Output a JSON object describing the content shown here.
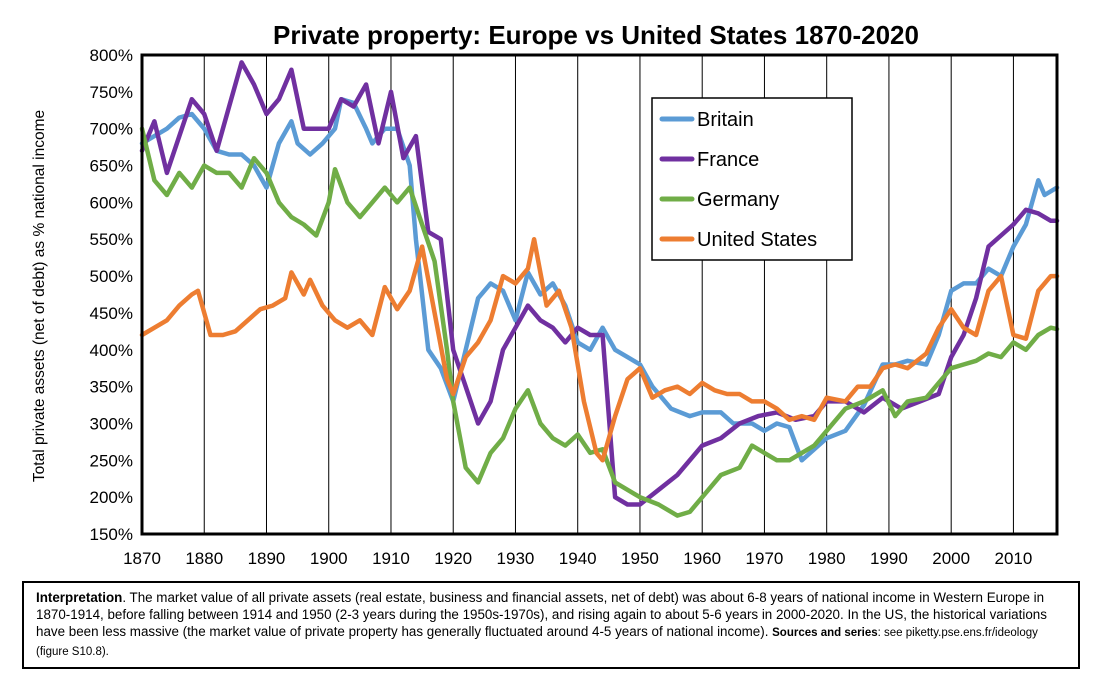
{
  "chart_data": {
    "type": "line",
    "title": "Private property: Europe vs United States 1870-2020",
    "ylabel": "Total private assets (net of debt) as % national income",
    "xlabel": "",
    "xlim": [
      1870,
      2017
    ],
    "ylim": [
      150,
      800
    ],
    "y_ticks": [
      150,
      200,
      250,
      300,
      350,
      400,
      450,
      500,
      550,
      600,
      650,
      700,
      750,
      800
    ],
    "y_tick_labels": [
      "150%",
      "200%",
      "250%",
      "300%",
      "350%",
      "400%",
      "450%",
      "500%",
      "550%",
      "600%",
      "650%",
      "700%",
      "750%",
      "800%"
    ],
    "x_ticks": [
      1870,
      1880,
      1890,
      1900,
      1910,
      1920,
      1930,
      1940,
      1950,
      1960,
      1970,
      1980,
      1990,
      2000,
      2010
    ],
    "x_tick_labels": [
      "1870",
      "1880",
      "1890",
      "1900",
      "1910",
      "1920",
      "1930",
      "1940",
      "1950",
      "1960",
      "1970",
      "1980",
      "1990",
      "2000",
      "2010"
    ],
    "grid": "vertical",
    "legend_position": "top-right",
    "series": [
      {
        "name": "Britain",
        "color": "#5b9bd5",
        "points": [
          [
            1870,
            680
          ],
          [
            1872,
            690
          ],
          [
            1874,
            700
          ],
          [
            1876,
            715
          ],
          [
            1878,
            720
          ],
          [
            1880,
            700
          ],
          [
            1882,
            670
          ],
          [
            1884,
            665
          ],
          [
            1886,
            665
          ],
          [
            1888,
            650
          ],
          [
            1890,
            620
          ],
          [
            1892,
            680
          ],
          [
            1894,
            710
          ],
          [
            1895,
            680
          ],
          [
            1897,
            665
          ],
          [
            1899,
            680
          ],
          [
            1901,
            700
          ],
          [
            1902,
            740
          ],
          [
            1904,
            735
          ],
          [
            1906,
            700
          ],
          [
            1907,
            680
          ],
          [
            1909,
            700
          ],
          [
            1911,
            700
          ],
          [
            1913,
            650
          ],
          [
            1914,
            550
          ],
          [
            1916,
            400
          ],
          [
            1918,
            375
          ],
          [
            1920,
            330
          ],
          [
            1922,
            400
          ],
          [
            1924,
            470
          ],
          [
            1926,
            490
          ],
          [
            1928,
            480
          ],
          [
            1930,
            440
          ],
          [
            1932,
            505
          ],
          [
            1934,
            475
          ],
          [
            1936,
            490
          ],
          [
            1938,
            460
          ],
          [
            1940,
            410
          ],
          [
            1942,
            400
          ],
          [
            1944,
            430
          ],
          [
            1946,
            400
          ],
          [
            1948,
            390
          ],
          [
            1950,
            380
          ],
          [
            1952,
            350
          ],
          [
            1955,
            320
          ],
          [
            1958,
            310
          ],
          [
            1960,
            315
          ],
          [
            1963,
            315
          ],
          [
            1965,
            300
          ],
          [
            1968,
            300
          ],
          [
            1970,
            290
          ],
          [
            1972,
            300
          ],
          [
            1974,
            295
          ],
          [
            1976,
            250
          ],
          [
            1978,
            265
          ],
          [
            1980,
            280
          ],
          [
            1983,
            290
          ],
          [
            1986,
            325
          ],
          [
            1989,
            380
          ],
          [
            1991,
            380
          ],
          [
            1993,
            385
          ],
          [
            1996,
            380
          ],
          [
            1998,
            420
          ],
          [
            2000,
            480
          ],
          [
            2002,
            490
          ],
          [
            2004,
            490
          ],
          [
            2006,
            510
          ],
          [
            2008,
            500
          ],
          [
            2010,
            540
          ],
          [
            2012,
            570
          ],
          [
            2014,
            630
          ],
          [
            2015,
            610
          ],
          [
            2017,
            620
          ]
        ]
      },
      {
        "name": "France",
        "color": "#7030a0",
        "points": [
          [
            1870,
            670
          ],
          [
            1872,
            710
          ],
          [
            1874,
            640
          ],
          [
            1876,
            690
          ],
          [
            1878,
            740
          ],
          [
            1880,
            720
          ],
          [
            1882,
            670
          ],
          [
            1884,
            730
          ],
          [
            1886,
            790
          ],
          [
            1888,
            760
          ],
          [
            1890,
            720
          ],
          [
            1892,
            740
          ],
          [
            1894,
            780
          ],
          [
            1896,
            700
          ],
          [
            1898,
            700
          ],
          [
            1900,
            700
          ],
          [
            1902,
            740
          ],
          [
            1904,
            730
          ],
          [
            1906,
            760
          ],
          [
            1908,
            680
          ],
          [
            1910,
            750
          ],
          [
            1912,
            660
          ],
          [
            1914,
            690
          ],
          [
            1916,
            560
          ],
          [
            1918,
            550
          ],
          [
            1920,
            400
          ],
          [
            1922,
            350
          ],
          [
            1924,
            300
          ],
          [
            1926,
            330
          ],
          [
            1928,
            400
          ],
          [
            1930,
            430
          ],
          [
            1932,
            460
          ],
          [
            1934,
            440
          ],
          [
            1936,
            430
          ],
          [
            1938,
            410
          ],
          [
            1940,
            430
          ],
          [
            1942,
            420
          ],
          [
            1944,
            420
          ],
          [
            1946,
            200
          ],
          [
            1948,
            190
          ],
          [
            1950,
            190
          ],
          [
            1953,
            210
          ],
          [
            1956,
            230
          ],
          [
            1960,
            270
          ],
          [
            1963,
            280
          ],
          [
            1966,
            300
          ],
          [
            1969,
            310
          ],
          [
            1972,
            315
          ],
          [
            1975,
            305
          ],
          [
            1978,
            310
          ],
          [
            1980,
            330
          ],
          [
            1983,
            330
          ],
          [
            1986,
            315
          ],
          [
            1989,
            335
          ],
          [
            1992,
            320
          ],
          [
            1995,
            330
          ],
          [
            1998,
            340
          ],
          [
            2000,
            390
          ],
          [
            2002,
            420
          ],
          [
            2004,
            470
          ],
          [
            2006,
            540
          ],
          [
            2008,
            555
          ],
          [
            2010,
            570
          ],
          [
            2012,
            590
          ],
          [
            2014,
            585
          ],
          [
            2016,
            575
          ],
          [
            2017,
            575
          ]
        ]
      },
      {
        "name": "Germany",
        "color": "#70ad47",
        "points": [
          [
            1870,
            700
          ],
          [
            1872,
            630
          ],
          [
            1874,
            610
          ],
          [
            1876,
            640
          ],
          [
            1878,
            620
          ],
          [
            1880,
            650
          ],
          [
            1882,
            640
          ],
          [
            1884,
            640
          ],
          [
            1886,
            620
          ],
          [
            1888,
            660
          ],
          [
            1890,
            640
          ],
          [
            1892,
            600
          ],
          [
            1894,
            580
          ],
          [
            1896,
            570
          ],
          [
            1898,
            555
          ],
          [
            1900,
            600
          ],
          [
            1901,
            645
          ],
          [
            1903,
            600
          ],
          [
            1905,
            580
          ],
          [
            1907,
            600
          ],
          [
            1909,
            620
          ],
          [
            1911,
            600
          ],
          [
            1913,
            620
          ],
          [
            1915,
            570
          ],
          [
            1917,
            520
          ],
          [
            1919,
            400
          ],
          [
            1920,
            330
          ],
          [
            1922,
            240
          ],
          [
            1924,
            220
          ],
          [
            1926,
            260
          ],
          [
            1928,
            280
          ],
          [
            1930,
            320
          ],
          [
            1932,
            345
          ],
          [
            1934,
            300
          ],
          [
            1936,
            280
          ],
          [
            1938,
            270
          ],
          [
            1940,
            285
          ],
          [
            1942,
            260
          ],
          [
            1944,
            265
          ],
          [
            1946,
            220
          ],
          [
            1948,
            210
          ],
          [
            1950,
            200
          ],
          [
            1953,
            190
          ],
          [
            1956,
            175
          ],
          [
            1958,
            180
          ],
          [
            1960,
            200
          ],
          [
            1963,
            230
          ],
          [
            1966,
            240
          ],
          [
            1968,
            270
          ],
          [
            1970,
            260
          ],
          [
            1972,
            250
          ],
          [
            1974,
            250
          ],
          [
            1976,
            260
          ],
          [
            1978,
            270
          ],
          [
            1980,
            290
          ],
          [
            1983,
            320
          ],
          [
            1986,
            330
          ],
          [
            1989,
            345
          ],
          [
            1991,
            310
          ],
          [
            1993,
            330
          ],
          [
            1996,
            335
          ],
          [
            1998,
            355
          ],
          [
            2000,
            375
          ],
          [
            2002,
            380
          ],
          [
            2004,
            385
          ],
          [
            2006,
            395
          ],
          [
            2008,
            390
          ],
          [
            2010,
            410
          ],
          [
            2012,
            400
          ],
          [
            2014,
            420
          ],
          [
            2016,
            430
          ],
          [
            2017,
            428
          ]
        ]
      },
      {
        "name": "United States",
        "color": "#ed7d31",
        "points": [
          [
            1870,
            420
          ],
          [
            1872,
            430
          ],
          [
            1874,
            440
          ],
          [
            1876,
            460
          ],
          [
            1878,
            475
          ],
          [
            1879,
            480
          ],
          [
            1881,
            420
          ],
          [
            1883,
            420
          ],
          [
            1885,
            425
          ],
          [
            1887,
            440
          ],
          [
            1889,
            455
          ],
          [
            1891,
            460
          ],
          [
            1893,
            470
          ],
          [
            1894,
            505
          ],
          [
            1896,
            475
          ],
          [
            1897,
            495
          ],
          [
            1899,
            460
          ],
          [
            1901,
            440
          ],
          [
            1903,
            430
          ],
          [
            1905,
            440
          ],
          [
            1907,
            420
          ],
          [
            1909,
            485
          ],
          [
            1911,
            455
          ],
          [
            1913,
            480
          ],
          [
            1915,
            540
          ],
          [
            1917,
            450
          ],
          [
            1919,
            360
          ],
          [
            1920,
            340
          ],
          [
            1922,
            390
          ],
          [
            1924,
            410
          ],
          [
            1926,
            440
          ],
          [
            1928,
            500
          ],
          [
            1930,
            490
          ],
          [
            1932,
            510
          ],
          [
            1933,
            550
          ],
          [
            1935,
            460
          ],
          [
            1937,
            480
          ],
          [
            1939,
            430
          ],
          [
            1941,
            330
          ],
          [
            1943,
            260
          ],
          [
            1944,
            250
          ],
          [
            1946,
            310
          ],
          [
            1948,
            360
          ],
          [
            1950,
            375
          ],
          [
            1952,
            335
          ],
          [
            1954,
            345
          ],
          [
            1956,
            350
          ],
          [
            1958,
            340
          ],
          [
            1960,
            355
          ],
          [
            1962,
            345
          ],
          [
            1964,
            340
          ],
          [
            1966,
            340
          ],
          [
            1968,
            330
          ],
          [
            1970,
            330
          ],
          [
            1972,
            320
          ],
          [
            1974,
            305
          ],
          [
            1976,
            310
          ],
          [
            1978,
            305
          ],
          [
            1980,
            335
          ],
          [
            1983,
            330
          ],
          [
            1985,
            350
          ],
          [
            1987,
            350
          ],
          [
            1989,
            375
          ],
          [
            1991,
            380
          ],
          [
            1993,
            375
          ],
          [
            1996,
            395
          ],
          [
            1998,
            430
          ],
          [
            2000,
            455
          ],
          [
            2002,
            430
          ],
          [
            2004,
            420
          ],
          [
            2006,
            480
          ],
          [
            2008,
            500
          ],
          [
            2010,
            420
          ],
          [
            2012,
            415
          ],
          [
            2014,
            480
          ],
          [
            2016,
            500
          ],
          [
            2017,
            500
          ]
        ]
      }
    ]
  },
  "caption": {
    "label": "Interpretation",
    "text1": ". The market value of all private assets (real estate, business and financial assets, net of debt) was about 6-8 years of national income in Western Europe in 1870-1914, before falling between 1914 and 1950 (2-3 years during the 1950s-1970s), and rising again to about 5-6 years in 2000-2020. In the US, the historical variations have been less massive (the market value of private property has generally fluctuated around 4-5 years of national income). ",
    "sources_label": "Sources and series",
    "sources_text": ": see piketty.pse.ens.fr/ideology (figure S10.8)."
  }
}
